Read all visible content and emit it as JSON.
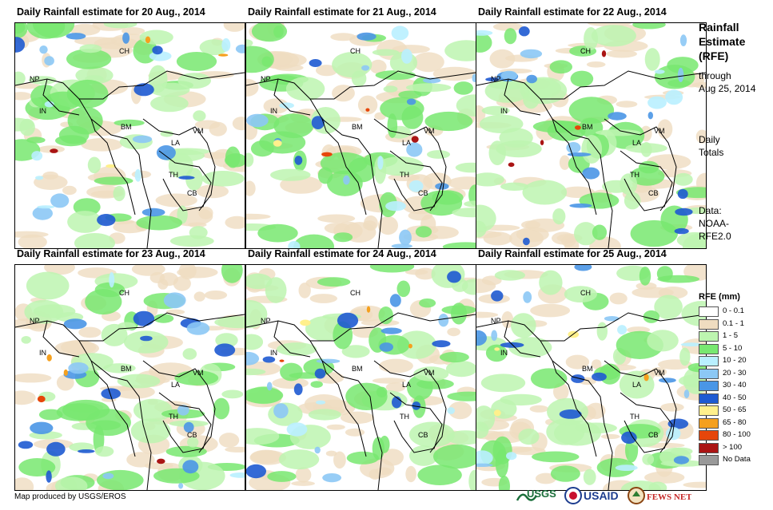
{
  "panels": [
    {
      "title": "Daily Rainfall estimate for 20 Aug., 2014",
      "blobs": 0
    },
    {
      "title": "Daily Rainfall estimate for 21 Aug., 2014",
      "blobs": 1
    },
    {
      "title": "Daily Rainfall estimate for 22 Aug., 2014",
      "blobs": 2
    },
    {
      "title": "Daily Rainfall estimate for 23 Aug., 2014",
      "blobs": 3
    },
    {
      "title": "Daily Rainfall estimate for 24 Aug., 2014",
      "blobs": 4
    },
    {
      "title": "Daily Rainfall estimate for 25 Aug., 2014",
      "blobs": 5
    }
  ],
  "country_labels": [
    "CH",
    "NP",
    "IN",
    "BM",
    "LA",
    "VM",
    "TH",
    "CB"
  ],
  "side": {
    "title": [
      "Rainfall",
      "Estimate",
      "(RFE)"
    ],
    "through": [
      "through",
      "Aug 25, 2014"
    ],
    "daily": [
      "Daily",
      "Totals"
    ],
    "data": [
      "Data:",
      "NOAA-",
      "RFE2.0"
    ]
  },
  "legend": {
    "title": "RFE (mm)",
    "items": [
      {
        "label": "0 - 0.1",
        "color": "#ffffff"
      },
      {
        "label": "0.1 - 1",
        "color": "#efdcc0"
      },
      {
        "label": "1 - 5",
        "color": "#bdf5b0"
      },
      {
        "label": "5 - 10",
        "color": "#78e870"
      },
      {
        "label": "10 - 20",
        "color": "#b9f0ff"
      },
      {
        "label": "20 - 30",
        "color": "#8cc8f5"
      },
      {
        "label": "30 - 40",
        "color": "#4a96e6"
      },
      {
        "label": "40 - 50",
        "color": "#1e5ad2"
      },
      {
        "label": "50 - 65",
        "color": "#fff08c"
      },
      {
        "label": "65 - 80",
        "color": "#f5a01e"
      },
      {
        "label": "80 - 100",
        "color": "#e6460a"
      },
      {
        "label": "> 100",
        "color": "#aa1414"
      },
      {
        "label": "No Data",
        "color": "#999999"
      }
    ]
  },
  "footer": "Map produced by USGS/EROS",
  "logos": {
    "usgs": "USGS",
    "usaid": "USAID",
    "fewsnet": "FEWS NET"
  }
}
